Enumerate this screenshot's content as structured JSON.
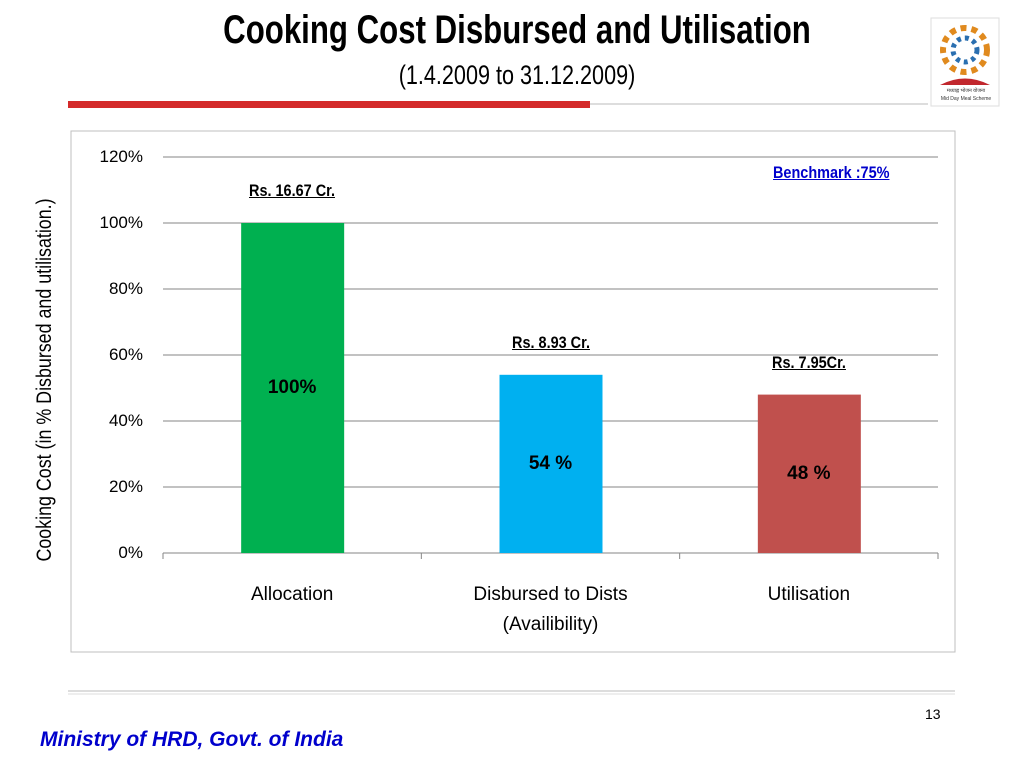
{
  "chart_data": {
    "type": "bar",
    "title": "Cooking Cost Disbursed and Utilisation",
    "subtitle": "(1.4.2009 to 31.12.2009)",
    "y_label": "Cooking Cost (in % Disbursed and utilisation.)",
    "categories": [
      "Allocation",
      "Disbursed to Dists (Availibility)",
      "Utilisation"
    ],
    "values": [
      100,
      54,
      48
    ],
    "value_labels": [
      "100%",
      "54 %",
      "48 %"
    ],
    "bar_annotations": [
      "Rs. 16.67 Cr.",
      "Rs.  8.93 Cr.",
      "Rs.  7.95Cr."
    ],
    "colors": [
      "#00b050",
      "#00b0f0",
      "#c0504d"
    ],
    "benchmark_note": "Benchmark :75%",
    "ylim": [
      0,
      120
    ],
    "yticks": [
      {
        "value": 0,
        "label": "0%"
      },
      {
        "value": 20,
        "label": "20%"
      },
      {
        "value": 40,
        "label": "40%"
      },
      {
        "value": 60,
        "label": "60%"
      },
      {
        "value": 80,
        "label": "80%"
      },
      {
        "value": 100,
        "label": "100%"
      },
      {
        "value": 120,
        "label": "120%"
      }
    ],
    "grid": true
  },
  "logo_text": [
    "मध्याह्न भोजन योजना",
    "Mid Day Meal Scheme"
  ],
  "page_number": "13",
  "footer": "Ministry of HRD, Govt. of India"
}
